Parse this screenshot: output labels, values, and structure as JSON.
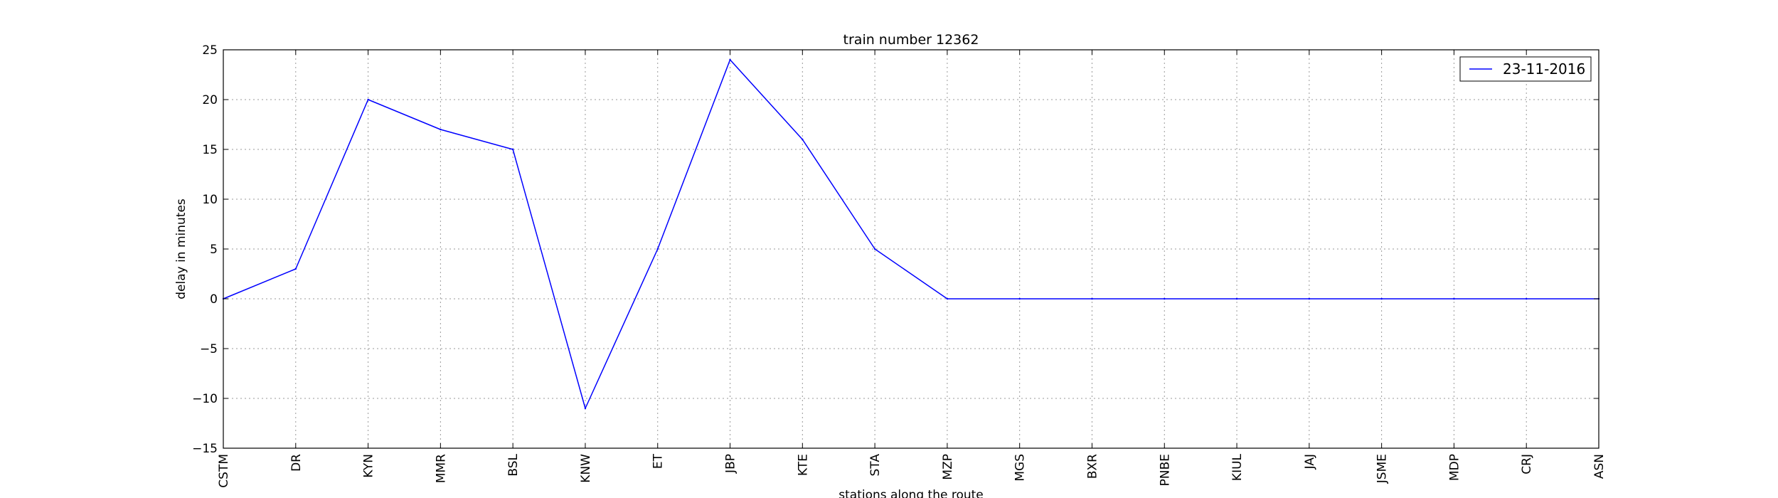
{
  "chart_data": {
    "type": "line",
    "title": "train number 12362",
    "xlabel": "stations along the route",
    "ylabel": "delay in minutes",
    "categories": [
      "CSTM",
      "DR",
      "KYN",
      "MMR",
      "BSL",
      "KNW",
      "ET",
      "JBP",
      "KTE",
      "STA",
      "MZP",
      "MGS",
      "BXR",
      "PNBE",
      "KIUL",
      "JAJ",
      "JSME",
      "MDP",
      "CRJ",
      "ASN"
    ],
    "series": [
      {
        "name": "23-11-2016",
        "color": "#0000ff",
        "values": [
          0,
          3,
          20,
          17,
          15,
          -11,
          5,
          24,
          16,
          5,
          0,
          0,
          0,
          0,
          0,
          0,
          0,
          0,
          0,
          0
        ]
      }
    ],
    "ylim": [
      -15,
      25
    ],
    "yticks": [
      -15,
      -10,
      -5,
      0,
      5,
      10,
      15,
      20,
      25
    ],
    "ytick_labels": [
      "−15",
      "−10",
      "−5",
      "0",
      "5",
      "10",
      "15",
      "20",
      "25"
    ],
    "grid": true,
    "legend_position": "top-right"
  }
}
